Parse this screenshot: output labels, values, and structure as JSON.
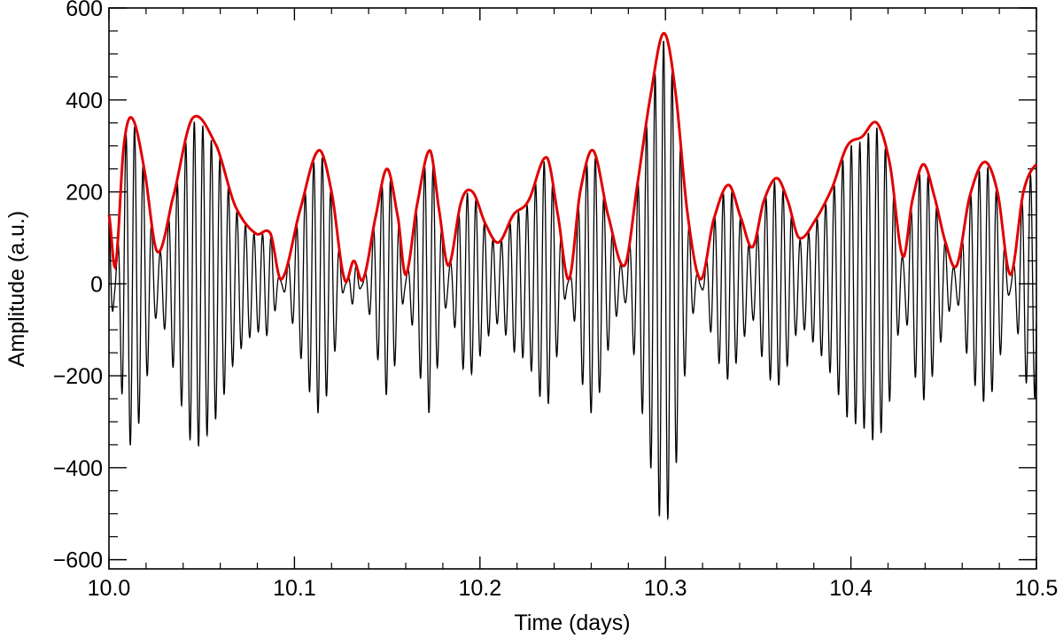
{
  "chart_data": {
    "type": "line",
    "title": "",
    "xlabel": "Time (days)",
    "ylabel": "Amplitude (a.u.)",
    "xlim": [
      10.0,
      10.5
    ],
    "ylim": [
      -620,
      600
    ],
    "x_ticks": [
      10.0,
      10.1,
      10.2,
      10.3,
      10.4,
      10.5
    ],
    "x_tick_labels": [
      "10.0",
      "10.1",
      "10.2",
      "10.3",
      "10.4",
      "10.5"
    ],
    "y_ticks": [
      -600,
      -400,
      -200,
      0,
      200,
      400,
      600
    ],
    "y_tick_labels": [
      "−600",
      "−400",
      "−200",
      "0",
      "200",
      "400",
      "600"
    ],
    "grid": false,
    "legend": "none",
    "series": [
      {
        "color": "#000000",
        "description_points": "oscillating signal; carrier period about 0.0046 days",
        "carrier_period": 0.0046,
        "offset": 0
      },
      {
        "color": "#e00000",
        "x": [
          10.0,
          10.0035,
          10.008,
          10.0125,
          10.019,
          10.026,
          10.034,
          10.045,
          10.058,
          10.068,
          10.079,
          10.087,
          10.093,
          10.103,
          10.113,
          10.12,
          10.127,
          10.132,
          10.137,
          10.144,
          10.15,
          10.156,
          10.16,
          10.166,
          10.173,
          10.178,
          10.183,
          10.19,
          10.196,
          10.203,
          10.21,
          10.218,
          10.226,
          10.236,
          10.242,
          10.248,
          10.254,
          10.261,
          10.269,
          10.278,
          10.285,
          10.292,
          10.299,
          10.305,
          10.312,
          10.319,
          10.326,
          10.334,
          10.341,
          10.347,
          10.353,
          10.36,
          10.366,
          10.372,
          10.381,
          10.39,
          10.398,
          10.406,
          10.414,
          10.421,
          10.428,
          10.433,
          10.439,
          10.445,
          10.451,
          10.457,
          10.464,
          10.472,
          10.479,
          10.486,
          10.493,
          10.5
        ],
        "y": [
          150,
          40,
          300,
          360,
          250,
          70,
          180,
          360,
          300,
          170,
          110,
          110,
          10,
          160,
          290,
          200,
          10,
          50,
          10,
          150,
          250,
          140,
          20,
          170,
          290,
          160,
          40,
          180,
          200,
          130,
          90,
          150,
          180,
          275,
          150,
          10,
          200,
          290,
          150,
          40,
          220,
          410,
          545,
          430,
          150,
          10,
          140,
          215,
          140,
          80,
          180,
          230,
          180,
          100,
          140,
          210,
          300,
          320,
          350,
          260,
          60,
          180,
          260,
          190,
          90,
          40,
          190,
          265,
          200,
          20,
          200,
          260
        ]
      }
    ]
  }
}
